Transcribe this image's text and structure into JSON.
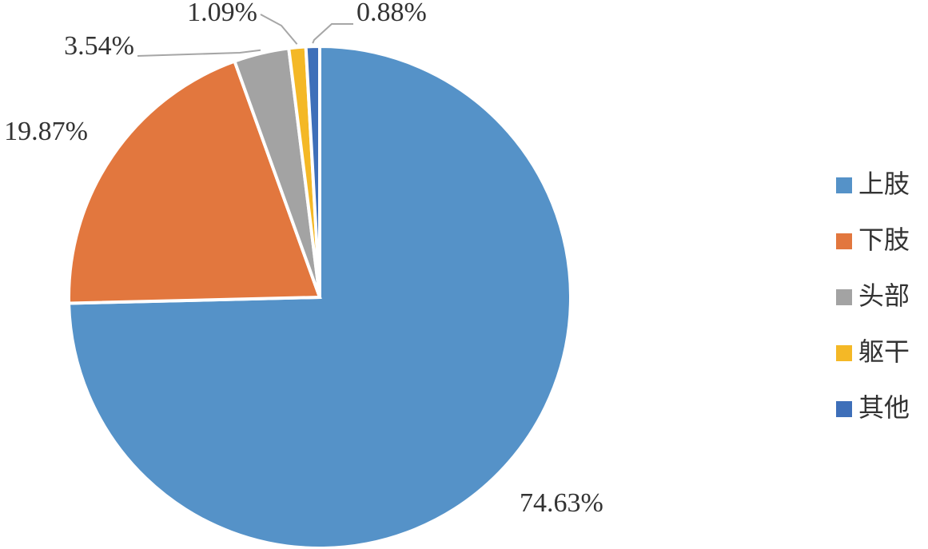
{
  "chart_data": {
    "type": "pie",
    "categories": [
      "上肢",
      "下肢",
      "头部",
      "躯干",
      "其他"
    ],
    "values": [
      74.63,
      19.87,
      3.54,
      1.09,
      0.88
    ],
    "value_labels": [
      "74.63%",
      "19.87%",
      "3.54%",
      "1.09%",
      "0.88%"
    ],
    "colors": [
      "#5592c8",
      "#e2773e",
      "#a3a3a3",
      "#f4b826",
      "#3e6fb9"
    ],
    "legend": "right"
  }
}
